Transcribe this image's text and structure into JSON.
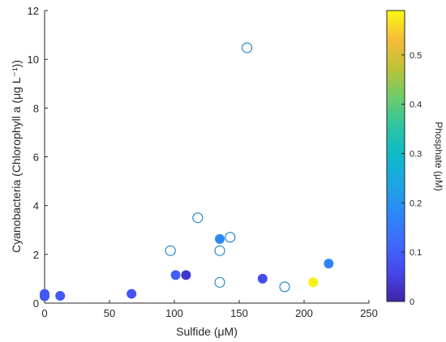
{
  "chart_data": {
    "type": "scatter",
    "xlabel": "Sulfide (μM)",
    "ylabel": "Cyanobacteria (Chlorophyll a (μg L⁻¹))",
    "xlim": [
      0,
      250
    ],
    "ylim": [
      0,
      12
    ],
    "x_ticks": [
      "0",
      "50",
      "100",
      "150",
      "200",
      "250"
    ],
    "y_ticks": [
      "0",
      "2",
      "4",
      "6",
      "8",
      "10",
      "12"
    ],
    "grid": false,
    "colormap": "parula",
    "colorbar": {
      "label": "Phosphate (μM)",
      "range": [
        0,
        0.59
      ],
      "ticks": [
        "0",
        "0.1",
        "0.2",
        "0.3",
        "0.4",
        "0.5"
      ],
      "placement": "right"
    },
    "points": [
      {
        "x": 0,
        "y": 0.38,
        "phosphate": 0.09,
        "filled": true
      },
      {
        "x": 0,
        "y": 0.28,
        "phosphate": 0.09,
        "filled": true
      },
      {
        "x": 12,
        "y": 0.3,
        "phosphate": 0.09,
        "filled": true
      },
      {
        "x": 67,
        "y": 0.38,
        "phosphate": 0.08,
        "filled": true
      },
      {
        "x": 97,
        "y": 2.15,
        "phosphate": null,
        "filled": false
      },
      {
        "x": 101,
        "y": 1.15,
        "phosphate": 0.1,
        "filled": true
      },
      {
        "x": 109,
        "y": 1.15,
        "phosphate": 0.03,
        "filled": true
      },
      {
        "x": 118,
        "y": 3.5,
        "phosphate": null,
        "filled": false
      },
      {
        "x": 135,
        "y": 2.15,
        "phosphate": null,
        "filled": false
      },
      {
        "x": 135,
        "y": 2.63,
        "phosphate": 0.18,
        "filled": true
      },
      {
        "x": 135,
        "y": 0.85,
        "phosphate": null,
        "filled": false
      },
      {
        "x": 143,
        "y": 2.7,
        "phosphate": null,
        "filled": false
      },
      {
        "x": 156,
        "y": 10.47,
        "phosphate": null,
        "filled": false
      },
      {
        "x": 168,
        "y": 1.0,
        "phosphate": 0.07,
        "filled": true
      },
      {
        "x": 185,
        "y": 0.67,
        "phosphate": null,
        "filled": false
      },
      {
        "x": 207,
        "y": 0.85,
        "phosphate": 0.58,
        "filled": true
      },
      {
        "x": 219,
        "y": 1.62,
        "phosphate": 0.17,
        "filled": true
      }
    ],
    "colors": {
      "open_marker": "#0072BD",
      "axis": "#262626"
    }
  }
}
